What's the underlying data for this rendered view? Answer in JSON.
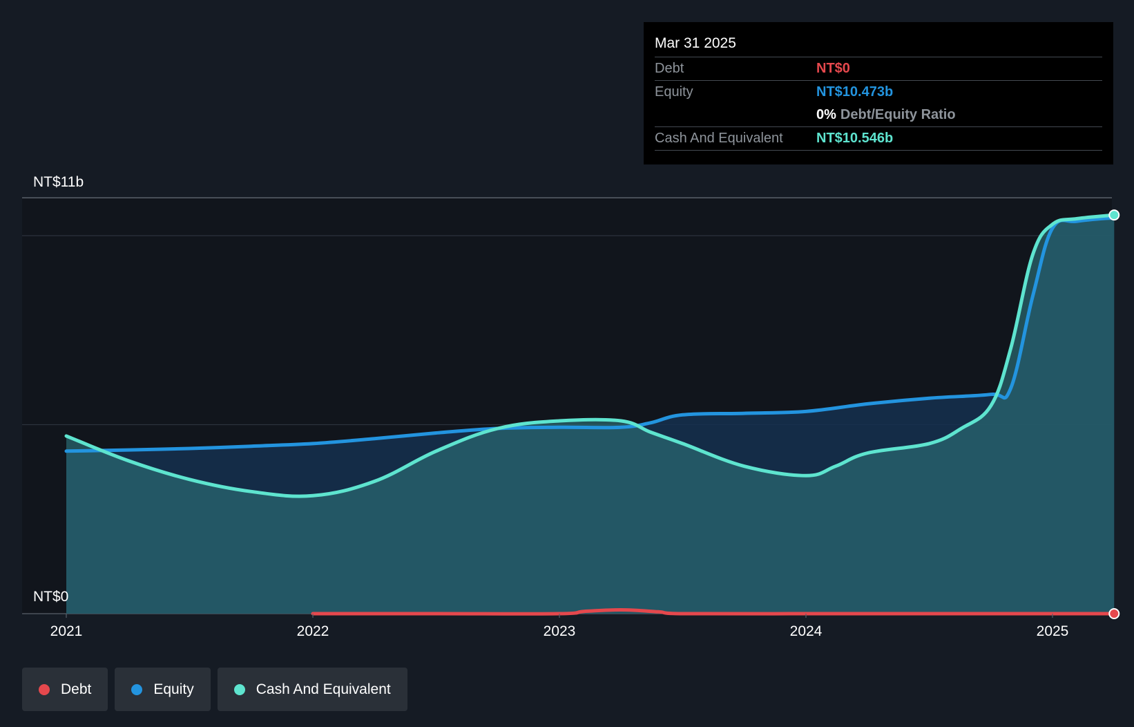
{
  "tooltip": {
    "date": "Mar 31 2025",
    "debt_label": "Debt",
    "debt_value": "NT$0",
    "equity_label": "Equity",
    "equity_value": "NT$10.473b",
    "ratio_value": "0%",
    "ratio_label": "Debt/Equity Ratio",
    "cash_label": "Cash And Equivalent",
    "cash_value": "NT$10.546b"
  },
  "legend": [
    {
      "label": "Debt",
      "color": "#e5484d"
    },
    {
      "label": "Equity",
      "color": "#2394df"
    },
    {
      "label": "Cash And Equivalent",
      "color": "#5ee4cf"
    }
  ],
  "chart_data": {
    "type": "area",
    "x_ticks": [
      "2021",
      "2022",
      "2023",
      "2024",
      "2025"
    ],
    "y_labels": {
      "top": "NT$11b",
      "bottom": "NT$0"
    },
    "ylim": [
      0,
      11
    ],
    "xlim": [
      2020.82,
      2025.25
    ],
    "gridlines": [
      0,
      5,
      10,
      11
    ],
    "colors": {
      "debt": "#e5484d",
      "equity": "#2394df",
      "cash": "#5ee4cf"
    },
    "series": [
      {
        "name": "Debt",
        "x": [
          2022.0,
          2022.5,
          2023.0,
          2023.1,
          2023.25,
          2023.4,
          2023.5,
          2024.0,
          2024.5,
          2025.0,
          2025.25
        ],
        "values": [
          0.0,
          0.0,
          0.0,
          0.06,
          0.1,
          0.05,
          0.0,
          0.0,
          0.0,
          0.0,
          0.0
        ]
      },
      {
        "name": "Equity",
        "x": [
          2021.0,
          2021.25,
          2021.5,
          2021.75,
          2022.0,
          2022.25,
          2022.5,
          2022.75,
          2023.0,
          2023.25,
          2023.37,
          2023.5,
          2023.75,
          2024.0,
          2024.25,
          2024.5,
          2024.75,
          2024.83,
          2024.92,
          2025.0,
          2025.1,
          2025.25
        ],
        "values": [
          4.3,
          4.33,
          4.37,
          4.43,
          4.5,
          4.63,
          4.78,
          4.9,
          4.93,
          4.93,
          5.05,
          5.26,
          5.3,
          5.35,
          5.55,
          5.7,
          5.8,
          5.95,
          8.4,
          10.2,
          10.38,
          10.473
        ]
      },
      {
        "name": "Cash And Equivalent",
        "x": [
          2021.0,
          2021.25,
          2021.5,
          2021.75,
          2022.0,
          2022.25,
          2022.5,
          2022.75,
          2023.0,
          2023.25,
          2023.37,
          2023.5,
          2023.75,
          2024.0,
          2024.12,
          2024.25,
          2024.5,
          2024.63,
          2024.75,
          2024.83,
          2024.92,
          2025.0,
          2025.1,
          2025.25
        ],
        "values": [
          4.7,
          4.05,
          3.55,
          3.23,
          3.12,
          3.5,
          4.3,
          4.9,
          5.1,
          5.1,
          4.8,
          4.5,
          3.9,
          3.65,
          3.9,
          4.25,
          4.5,
          4.9,
          5.5,
          7.0,
          9.5,
          10.3,
          10.45,
          10.546
        ]
      }
    ]
  }
}
